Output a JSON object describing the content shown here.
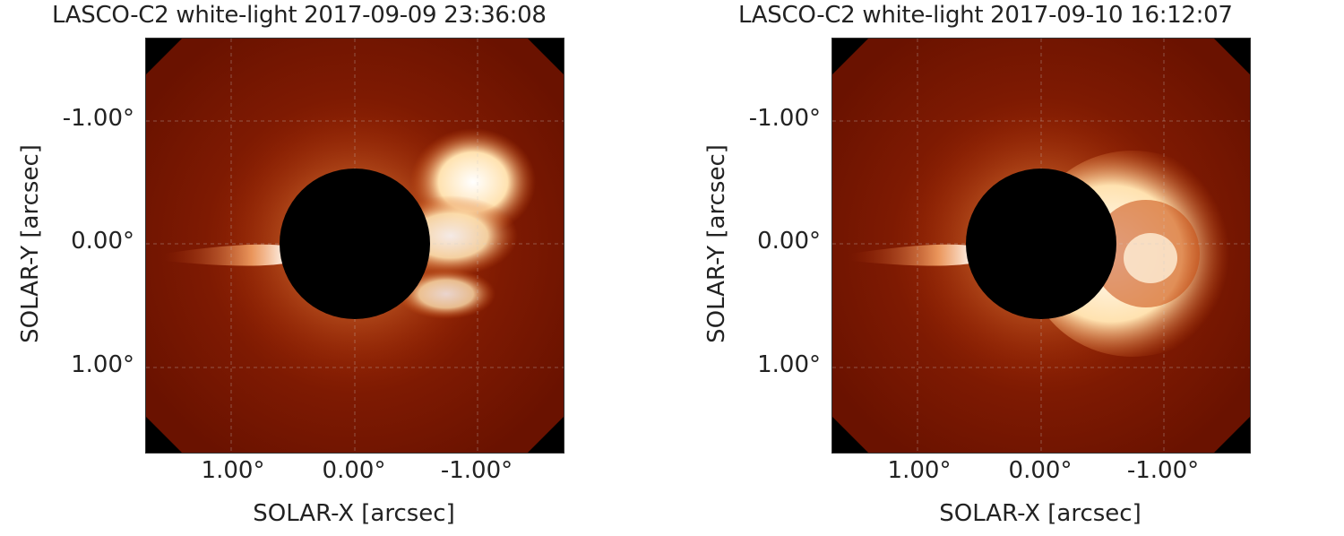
{
  "figure": {
    "ylabel": "SOLAR-Y [arcsec]",
    "xlabel": "SOLAR-X [arcsec]",
    "yticks": [
      "-1.00°",
      "0.00°",
      "1.00°"
    ],
    "xticks": [
      "1.00°",
      "0.00°",
      "-1.00°"
    ]
  },
  "panels": [
    {
      "title": "LASCO-C2 white-light 2017-09-09 23:36:08"
    },
    {
      "title": "LASCO-C2 white-light 2017-09-10 16:12:07"
    }
  ],
  "colors": {
    "background": "#7a1500",
    "bright": "#fff3d6",
    "occulter": "#000000"
  }
}
